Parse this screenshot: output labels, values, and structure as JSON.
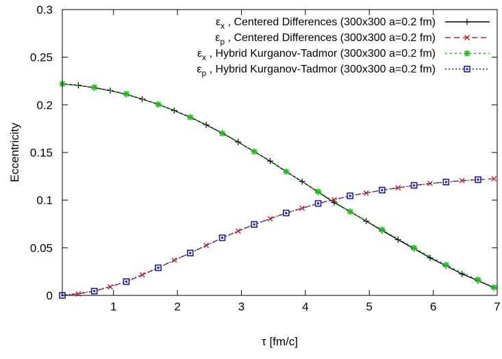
{
  "chart_data": {
    "type": "line",
    "xlabel": "τ [fm/c]",
    "ylabel": "Eccentricity",
    "xlim": [
      0.2,
      7
    ],
    "ylim": [
      0,
      0.3
    ],
    "xticks": [
      "1",
      "2",
      "3",
      "4",
      "5",
      "6",
      "7"
    ],
    "yticks": [
      "0",
      "0.05",
      "0.1",
      "0.15",
      "0.2",
      "0.25",
      "0.3"
    ],
    "grid": false,
    "legend_position": "top-right",
    "series": [
      {
        "name": "εx , Centered Differences (300x300 a=0.2 fm)",
        "sym": "ε",
        "sub": "x",
        "label_rest": " , Centered Differences (300x300 a=0.2 fm)",
        "color": "#000000",
        "marker": "plus",
        "dash": "",
        "x": [
          0.2,
          0.45,
          0.7,
          0.95,
          1.2,
          1.45,
          1.7,
          1.95,
          2.2,
          2.45,
          2.7,
          2.95,
          3.2,
          3.45,
          3.7,
          3.95,
          4.2,
          4.45,
          4.7,
          4.95,
          5.2,
          5.45,
          5.7,
          5.95,
          6.2,
          6.45,
          6.7,
          6.95
        ],
        "y": [
          0.222,
          0.2205,
          0.218,
          0.215,
          0.211,
          0.206,
          0.2005,
          0.194,
          0.187,
          0.179,
          0.1705,
          0.161,
          0.151,
          0.141,
          0.13,
          0.1195,
          0.1085,
          0.0975,
          0.088,
          0.078,
          0.068,
          0.0585,
          0.049,
          0.0395,
          0.031,
          0.0225,
          0.0155,
          0.008
        ]
      },
      {
        "name": "εp , Centered Differences (300x300 a=0.2 fm)",
        "sym": "ε",
        "sub": "p",
        "label_rest": " , Centered Differences (300x300 a=0.2 fm)",
        "color": "#cc2222",
        "marker": "cross",
        "dash": "8,5",
        "x": [
          0.2,
          0.45,
          0.7,
          0.95,
          1.2,
          1.45,
          1.7,
          1.95,
          2.2,
          2.45,
          2.7,
          2.95,
          3.2,
          3.45,
          3.7,
          3.95,
          4.2,
          4.45,
          4.7,
          4.95,
          5.2,
          5.45,
          5.7,
          5.95,
          6.2,
          6.45,
          6.7,
          6.95
        ],
        "y": [
          0.0,
          0.0015,
          0.0045,
          0.009,
          0.0145,
          0.0215,
          0.029,
          0.037,
          0.0445,
          0.0525,
          0.0605,
          0.0675,
          0.0745,
          0.0805,
          0.0865,
          0.0915,
          0.0965,
          0.1005,
          0.1045,
          0.1075,
          0.1105,
          0.113,
          0.1155,
          0.1175,
          0.119,
          0.1205,
          0.1215,
          0.1225
        ]
      },
      {
        "name": "εx , Hybrid Kurganov-Tadmor (300x300 a=0.2 fm)",
        "sym": "ε",
        "sub": "x",
        "label_rest": " , Hybrid Kurganov-Tadmor (300x300 a=0.2 fm)",
        "color": "#22bb22",
        "marker": "star",
        "dash": "3,4",
        "x": [
          0.2,
          0.7,
          1.2,
          1.7,
          2.2,
          2.7,
          3.2,
          3.7,
          4.2,
          4.7,
          5.2,
          5.7,
          6.2,
          6.7,
          6.95
        ],
        "y": [
          0.222,
          0.2185,
          0.2115,
          0.2005,
          0.187,
          0.17,
          0.151,
          0.13,
          0.109,
          0.088,
          0.069,
          0.05,
          0.032,
          0.0165,
          0.0085
        ]
      },
      {
        "name": "εp , Hybrid Kurganov-Tadmor (300x300 a=0.2 fm)",
        "sym": "ε",
        "sub": "p",
        "label_rest": " , Hybrid Kurganov-Tadmor (300x300 a=0.2 fm)",
        "color": "#1a1aaa",
        "marker": "square",
        "dash": "2,3",
        "x": [
          0.2,
          0.7,
          1.2,
          1.7,
          2.2,
          2.7,
          3.2,
          3.7,
          4.2,
          4.7,
          5.2,
          5.7,
          6.2,
          6.7
        ],
        "y": [
          0.0,
          0.0045,
          0.0145,
          0.029,
          0.0445,
          0.0605,
          0.0745,
          0.0865,
          0.0965,
          0.1045,
          0.1105,
          0.1155,
          0.119,
          0.1215
        ]
      }
    ]
  }
}
